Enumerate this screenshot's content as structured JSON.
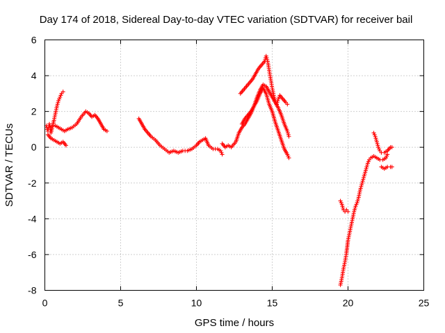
{
  "chart_data": {
    "type": "scatter",
    "title": "Day 174 of 2018, Sidereal Day-to-day VTEC variation (SDTVAR) for receiver bail",
    "xlabel": "GPS time / hours",
    "ylabel": "SDTVAR / TECUs",
    "xlim": [
      0,
      25
    ],
    "ylim": [
      -8,
      6
    ],
    "xticks": [
      "0",
      "5",
      "10",
      "15",
      "20",
      "25"
    ],
    "yticks": [
      "-8",
      "-6",
      "-4",
      "-2",
      "0",
      "2",
      "4",
      "6"
    ],
    "grid": true,
    "marker": "plus",
    "color": "#ff0000",
    "segments": [
      [
        [
          0.1,
          1.2
        ],
        [
          0.2,
          0.9
        ],
        [
          0.3,
          1.3
        ],
        [
          0.4,
          0.8
        ],
        [
          0.6,
          1.5
        ],
        [
          0.7,
          1.9
        ],
        [
          0.8,
          2.3
        ],
        [
          0.9,
          2.6
        ],
        [
          1.0,
          2.8
        ],
        [
          1.1,
          3.0
        ],
        [
          1.2,
          3.1
        ]
      ],
      [
        [
          0.2,
          0.7
        ],
        [
          0.4,
          0.5
        ],
        [
          0.6,
          0.4
        ],
        [
          0.8,
          0.3
        ],
        [
          1.0,
          0.2
        ],
        [
          1.2,
          0.3
        ],
        [
          1.4,
          0.1
        ]
      ],
      [
        [
          0.7,
          1.2
        ],
        [
          0.9,
          1.1
        ],
        [
          1.1,
          1.0
        ],
        [
          1.3,
          0.9
        ],
        [
          1.5,
          1.0
        ],
        [
          1.8,
          1.1
        ],
        [
          2.1,
          1.3
        ],
        [
          2.4,
          1.7
        ],
        [
          2.7,
          2.0
        ],
        [
          2.9,
          1.9
        ],
        [
          3.1,
          1.7
        ],
        [
          3.3,
          1.8
        ],
        [
          3.5,
          1.6
        ],
        [
          3.7,
          1.3
        ],
        [
          3.9,
          1.0
        ],
        [
          4.1,
          0.9
        ]
      ],
      [
        [
          6.2,
          1.6
        ],
        [
          6.4,
          1.3
        ],
        [
          6.6,
          1.0
        ],
        [
          6.8,
          0.8
        ],
        [
          7.0,
          0.6
        ],
        [
          7.3,
          0.4
        ],
        [
          7.6,
          0.1
        ],
        [
          7.9,
          -0.1
        ],
        [
          8.2,
          -0.3
        ],
        [
          8.5,
          -0.2
        ],
        [
          8.8,
          -0.3
        ],
        [
          9.1,
          -0.2
        ],
        [
          9.4,
          -0.2
        ],
        [
          9.7,
          -0.1
        ],
        [
          10.0,
          0.1
        ],
        [
          10.2,
          0.3
        ],
        [
          10.4,
          0.4
        ],
        [
          10.6,
          0.5
        ],
        [
          10.8,
          0.1
        ],
        [
          11.1,
          -0.1
        ],
        [
          11.4,
          -0.1
        ],
        [
          11.6,
          -0.2
        ],
        [
          11.7,
          -0.4
        ]
      ],
      [
        [
          11.7,
          0.2
        ],
        [
          11.9,
          0.0
        ],
        [
          12.1,
          0.1
        ],
        [
          12.3,
          0.0
        ],
        [
          12.6,
          0.3
        ],
        [
          12.8,
          0.8
        ],
        [
          13.0,
          1.1
        ],
        [
          13.2,
          1.3
        ],
        [
          13.4,
          1.6
        ],
        [
          13.6,
          1.9
        ],
        [
          13.8,
          2.3
        ],
        [
          14.0,
          2.8
        ],
        [
          14.2,
          3.2
        ],
        [
          14.4,
          3.5
        ],
        [
          14.6,
          3.4
        ],
        [
          14.8,
          3.1
        ],
        [
          15.0,
          2.8
        ],
        [
          15.2,
          2.5
        ],
        [
          15.4,
          2.2
        ],
        [
          15.6,
          1.8
        ],
        [
          15.8,
          1.3
        ],
        [
          16.0,
          0.9
        ],
        [
          16.1,
          0.6
        ]
      ],
      [
        [
          12.9,
          3.0
        ],
        [
          13.1,
          3.2
        ],
        [
          13.3,
          3.4
        ],
        [
          13.5,
          3.6
        ],
        [
          13.7,
          3.8
        ],
        [
          13.9,
          4.1
        ],
        [
          14.1,
          4.4
        ],
        [
          14.3,
          4.6
        ],
        [
          14.5,
          4.8
        ],
        [
          14.6,
          5.1
        ],
        [
          14.7,
          4.8
        ],
        [
          14.8,
          4.3
        ],
        [
          14.9,
          3.8
        ],
        [
          15.0,
          3.3
        ],
        [
          15.1,
          2.9
        ],
        [
          15.2,
          2.6
        ],
        [
          15.3,
          2.4
        ],
        [
          15.4,
          2.7
        ],
        [
          15.5,
          2.9
        ],
        [
          15.7,
          2.7
        ],
        [
          15.9,
          2.5
        ],
        [
          16.0,
          2.4
        ]
      ],
      [
        [
          13.0,
          1.3
        ],
        [
          13.2,
          1.6
        ],
        [
          13.4,
          1.8
        ],
        [
          13.6,
          2.0
        ],
        [
          13.8,
          2.3
        ],
        [
          14.0,
          2.6
        ],
        [
          14.2,
          3.0
        ],
        [
          14.4,
          3.3
        ],
        [
          14.6,
          3.0
        ],
        [
          14.8,
          2.4
        ],
        [
          15.0,
          2.0
        ],
        [
          15.2,
          1.4
        ],
        [
          15.4,
          0.9
        ],
        [
          15.6,
          0.4
        ],
        [
          15.8,
          -0.1
        ],
        [
          16.0,
          -0.4
        ],
        [
          16.1,
          -0.6
        ]
      ],
      [
        [
          19.5,
          -3.0
        ],
        [
          19.6,
          -3.2
        ],
        [
          19.7,
          -3.5
        ],
        [
          19.8,
          -3.6
        ],
        [
          19.9,
          -3.5
        ],
        [
          20.0,
          -3.6
        ]
      ],
      [
        [
          19.5,
          -7.7
        ],
        [
          19.6,
          -7.3
        ],
        [
          19.7,
          -6.8
        ],
        [
          19.8,
          -6.4
        ],
        [
          19.9,
          -5.9
        ],
        [
          20.0,
          -5.2
        ],
        [
          20.1,
          -4.8
        ],
        [
          20.2,
          -4.4
        ],
        [
          20.3,
          -4.0
        ],
        [
          20.4,
          -3.6
        ],
        [
          20.5,
          -3.3
        ],
        [
          20.6,
          -3.1
        ],
        [
          20.7,
          -2.8
        ],
        [
          20.8,
          -2.4
        ],
        [
          20.9,
          -2.1
        ],
        [
          21.0,
          -1.8
        ],
        [
          21.1,
          -1.5
        ],
        [
          21.2,
          -1.2
        ],
        [
          21.3,
          -0.9
        ],
        [
          21.4,
          -0.7
        ],
        [
          21.5,
          -0.6
        ],
        [
          21.7,
          -0.5
        ],
        [
          21.9,
          -0.6
        ],
        [
          22.1,
          -0.7
        ],
        [
          22.3,
          -0.7
        ],
        [
          22.5,
          -0.6
        ],
        [
          22.6,
          -0.4
        ]
      ],
      [
        [
          21.7,
          0.8
        ],
        [
          21.8,
          0.6
        ],
        [
          21.9,
          0.3
        ],
        [
          22.0,
          0.0
        ],
        [
          22.1,
          -0.2
        ],
        [
          22.2,
          -0.3
        ],
        [
          22.4,
          -0.3
        ],
        [
          22.6,
          -0.2
        ],
        [
          22.8,
          0.0
        ],
        [
          22.9,
          0.0
        ]
      ],
      [
        [
          22.2,
          -1.1
        ],
        [
          22.4,
          -1.2
        ],
        [
          22.6,
          -1.1
        ],
        [
          22.8,
          -1.1
        ],
        [
          22.9,
          -1.1
        ]
      ]
    ]
  }
}
